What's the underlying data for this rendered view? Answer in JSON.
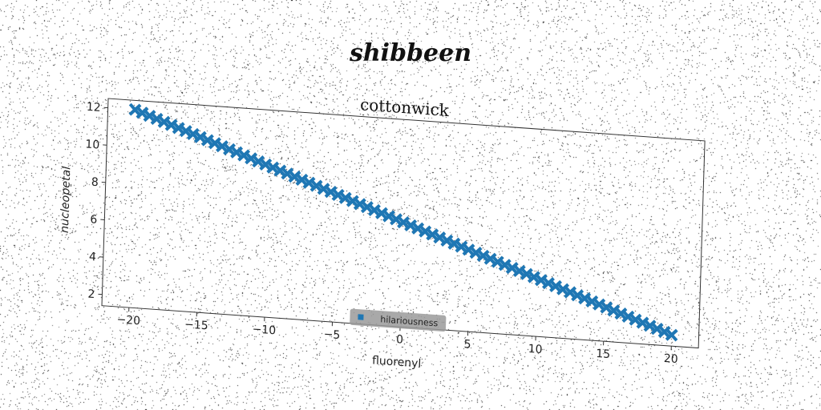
{
  "colors": {
    "series": "#1f77b4",
    "axes": "#333333",
    "legend_bg": "#9a9a9a"
  },
  "chart_data": {
    "type": "scatter",
    "suptitle": "shibbeen",
    "title": "cottonwick",
    "xlabel": "fluorenyl",
    "ylabel": "nucleopetal",
    "xlim": [
      -22,
      22
    ],
    "ylim": [
      1.4,
      12.5
    ],
    "xticks": [
      -20,
      -15,
      -10,
      -5,
      0,
      5,
      10,
      15,
      20
    ],
    "yticks": [
      2,
      4,
      6,
      8,
      10,
      12
    ],
    "xtick_labels": [
      "−20",
      "−15",
      "−10",
      "−5",
      "0",
      "5",
      "10",
      "15",
      "20"
    ],
    "ytick_labels": [
      "2",
      "4",
      "6",
      "8",
      "10",
      "12"
    ],
    "grid": false,
    "legend_position": "lower-center",
    "marker": "X",
    "series": [
      {
        "name": "hilariousness",
        "linear_fit": {
          "x_start": -20,
          "x_end": 20,
          "y_start": 12.0,
          "y_end": 2.0
        },
        "n_points": 75
      }
    ]
  }
}
